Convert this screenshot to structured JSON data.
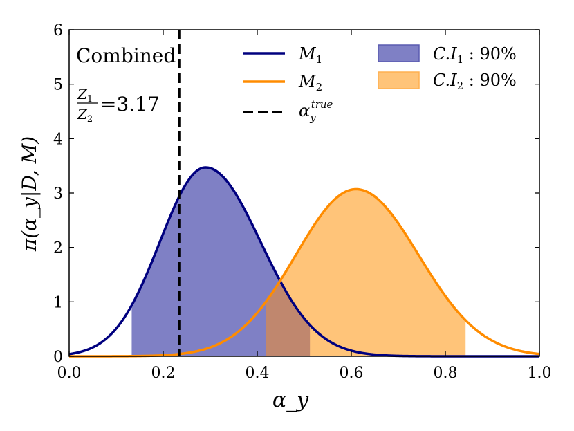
{
  "chart_data": {
    "type": "line",
    "title": "",
    "xlabel": "α_y",
    "ylabel": "π(α_y|D, M)",
    "xlim": [
      0.0,
      1.0
    ],
    "ylim": [
      0,
      6
    ],
    "xticks": [
      0.0,
      0.2,
      0.4,
      0.6,
      0.8,
      1.0
    ],
    "xtick_labels": [
      "0.0",
      "0.2",
      "0.4",
      "0.6",
      "0.8",
      "1.0"
    ],
    "yticks": [
      0,
      1,
      2,
      3,
      4,
      5,
      6
    ],
    "ytick_labels": [
      "0",
      "1",
      "2",
      "3",
      "4",
      "5",
      "6"
    ],
    "series": [
      {
        "name": "M1",
        "color": "#00007f",
        "peak_x": 0.29,
        "peak_y": 3.47,
        "sigma_left": 0.097,
        "sigma_right": 0.117,
        "ci_low": 0.133,
        "ci_high": 0.512,
        "ci_color": "#7f80c5"
      },
      {
        "name": "M2",
        "color": "#ff8c00",
        "peak_x": 0.61,
        "peak_y": 3.07,
        "sigma_left": 0.128,
        "sigma_right": 0.133,
        "ci_low": 0.418,
        "ci_high": 0.843,
        "ci_color": "#ffc479"
      }
    ],
    "overlap_color": "#c0876e",
    "alpha_true": 0.235,
    "annotations": {
      "combined": "Combined",
      "ratio_num": "Z",
      "ratio_num_sub": "1",
      "ratio_den": "Z",
      "ratio_den_sub": "2",
      "ratio_value": "=3.17"
    },
    "legend": {
      "placement": "top-right",
      "m1_label": "M",
      "m1_sub": "1",
      "m2_label": "M",
      "m2_sub": "2",
      "alpha_label": "α",
      "alpha_sub": "y",
      "alpha_sup": "true",
      "ci1_label": "C.I",
      "ci1_sub": "1",
      "ci1_value": " : 90%",
      "ci2_label": "C.I",
      "ci2_sub": "2",
      "ci2_value": " : 90%"
    }
  }
}
